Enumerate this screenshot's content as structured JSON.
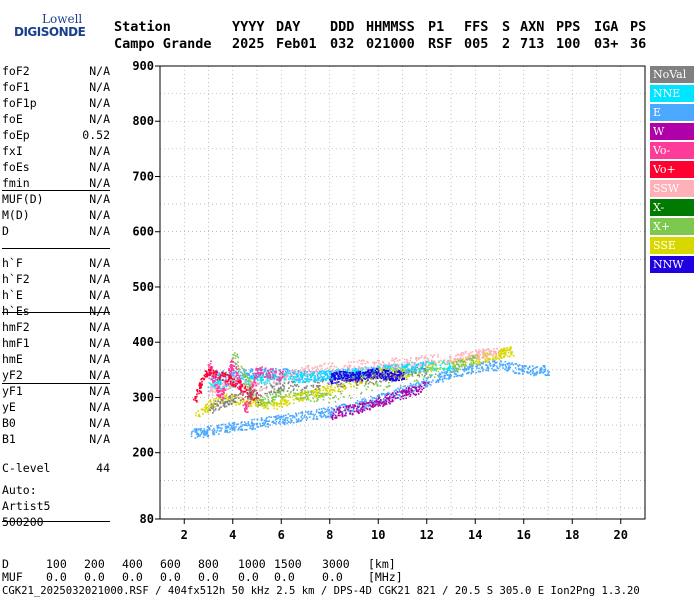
{
  "logo": {
    "line1": "Lowell",
    "line2": "DIGISONDE"
  },
  "header": {
    "labels": [
      "Station",
      "YYYY",
      "DAY",
      "DDD",
      "HHMMSS",
      "P1",
      "FFS",
      "S",
      "AXN",
      "PPS",
      "IGA",
      "PS"
    ],
    "values": [
      "Campo Grande",
      "2025",
      "Feb01",
      "032",
      "021000",
      "RSF",
      "005",
      "2",
      "713",
      "100",
      "03+",
      "36"
    ]
  },
  "params": {
    "group1": [
      {
        "label": "foF2",
        "value": "N/A"
      },
      {
        "label": "foF1",
        "value": "N/A"
      },
      {
        "label": "foF1p",
        "value": "N/A"
      },
      {
        "label": "foE",
        "value": "N/A"
      },
      {
        "label": "foEp",
        "value": "0.52"
      },
      {
        "label": "fxI",
        "value": "N/A"
      },
      {
        "label": "foEs",
        "value": "N/A"
      },
      {
        "label": "fmin",
        "value": "N/A"
      }
    ],
    "group2": [
      {
        "label": "MUF(D)",
        "value": "N/A"
      },
      {
        "label": "M(D)",
        "value": "N/A"
      },
      {
        "label": "D",
        "value": "N/A"
      }
    ],
    "group3": [
      {
        "label": "h`F",
        "value": "N/A"
      },
      {
        "label": "h`F2",
        "value": "N/A"
      },
      {
        "label": "h`E",
        "value": "N/A"
      },
      {
        "label": "h`Es",
        "value": "N/A"
      }
    ],
    "group4": [
      {
        "label": "hmF2",
        "value": "N/A"
      },
      {
        "label": "hmF1",
        "value": "N/A"
      },
      {
        "label": "hmE",
        "value": "N/A"
      },
      {
        "label": "yF2",
        "value": "N/A"
      },
      {
        "label": "yF1",
        "value": "N/A"
      },
      {
        "label": "yE",
        "value": "N/A"
      },
      {
        "label": "B0",
        "value": "N/A"
      },
      {
        "label": "B1",
        "value": "N/A"
      }
    ],
    "clevel": {
      "label": "C-level",
      "value": "44"
    }
  },
  "auto": {
    "line1": "Auto:",
    "line2": "Artist5",
    "line3": "500200"
  },
  "legend": [
    {
      "name": "NoVal",
      "color": "#808080"
    },
    {
      "name": "NNE",
      "color": "#00e5ff"
    },
    {
      "name": "E",
      "color": "#4aa8ff"
    },
    {
      "name": "W",
      "color": "#b000a8"
    },
    {
      "name": "Vo-",
      "color": "#ff3b9a"
    },
    {
      "name": "Vo+",
      "color": "#ff0030"
    },
    {
      "name": "SSW",
      "color": "#ffb0b8"
    },
    {
      "name": "X-",
      "color": "#007a00"
    },
    {
      "name": "X+",
      "color": "#7ec850"
    },
    {
      "name": "SSE",
      "color": "#d8d800"
    },
    {
      "name": "NNW",
      "color": "#2000e0"
    }
  ],
  "footer": {
    "d_label": "D",
    "d_values": [
      "100",
      "200",
      "400",
      "600",
      "800",
      "1000",
      "1500",
      "3000",
      "[km]"
    ],
    "muf_label": "MUF",
    "muf_values": [
      "0.0",
      "0.0",
      "0.0",
      "0.0",
      "0.0",
      "0.0",
      "0.0",
      "0.0",
      "[MHz]"
    ],
    "info": "CGK21_2025032021000.RSF / 404fx512h 50 kHz 2.5 km / DPS-4D CGK21 821 / 20.5 S 305.0 E Ion2Png 1.3.20"
  },
  "chart_data": {
    "type": "scatter",
    "xlim": [
      1.0,
      21.0
    ],
    "ylim": [
      80,
      900
    ],
    "x_ticks": [
      2,
      4,
      6,
      8,
      10,
      12,
      14,
      16,
      18,
      20
    ],
    "y_ticks": [
      80,
      200,
      300,
      400,
      500,
      600,
      700,
      800,
      900
    ],
    "grid": true,
    "traces": [
      {
        "name": "E",
        "color": "#4aa8ff",
        "points": [
          [
            2.3,
            235
          ],
          [
            3,
            240
          ],
          [
            4,
            248
          ],
          [
            5,
            254
          ],
          [
            6,
            261
          ],
          [
            7,
            268
          ],
          [
            8,
            275
          ],
          [
            9,
            285
          ],
          [
            10,
            298
          ],
          [
            11,
            312
          ],
          [
            12,
            330
          ],
          [
            13,
            345
          ],
          [
            14,
            355
          ],
          [
            15,
            360
          ],
          [
            16,
            350
          ],
          [
            17,
            350
          ]
        ]
      },
      {
        "name": "E",
        "color": "#4aa8ff",
        "points": [
          [
            3,
            340
          ],
          [
            4,
            342
          ],
          [
            5,
            345
          ],
          [
            6,
            345
          ],
          [
            7,
            340
          ],
          [
            8,
            342
          ],
          [
            9,
            345
          ],
          [
            10,
            350
          ],
          [
            11,
            352
          ],
          [
            12,
            355
          ]
        ]
      },
      {
        "name": "NNE",
        "color": "#00e5ff",
        "points": [
          [
            3,
            320
          ],
          [
            4,
            328
          ],
          [
            5,
            333
          ],
          [
            6,
            336
          ],
          [
            7,
            338
          ],
          [
            8,
            342
          ],
          [
            9,
            345
          ],
          [
            10,
            350
          ],
          [
            11,
            355
          ],
          [
            12,
            358
          ],
          [
            13,
            360
          ]
        ]
      },
      {
        "name": "W",
        "color": "#b000a8",
        "points": [
          [
            8,
            270
          ],
          [
            9,
            280
          ],
          [
            10,
            292
          ],
          [
            11,
            308
          ],
          [
            12,
            322
          ]
        ]
      },
      {
        "name": "SSE",
        "color": "#d8d800",
        "points": [
          [
            2.5,
            270
          ],
          [
            3.5,
            300
          ],
          [
            4.5,
            295
          ],
          [
            5.5,
            285
          ],
          [
            6.5,
            300
          ],
          [
            7.5,
            310
          ],
          [
            8.5,
            320
          ],
          [
            10,
            345
          ],
          [
            11,
            345
          ],
          [
            14,
            370
          ],
          [
            15,
            380
          ],
          [
            15.5,
            385
          ]
        ]
      },
      {
        "name": "SSW",
        "color": "#ffb0b8",
        "points": [
          [
            3,
            310
          ],
          [
            4,
            330
          ],
          [
            5,
            320
          ],
          [
            7,
            350
          ],
          [
            9,
            360
          ],
          [
            11,
            365
          ],
          [
            13,
            372
          ],
          [
            14,
            378
          ],
          [
            15,
            385
          ]
        ]
      },
      {
        "name": "NNW",
        "color": "#2000e0",
        "points": [
          [
            8,
            335
          ],
          [
            8.5,
            340
          ],
          [
            9,
            338
          ],
          [
            9.5,
            342
          ],
          [
            10,
            345
          ],
          [
            10.5,
            340
          ],
          [
            11,
            342
          ]
        ]
      },
      {
        "name": "Vo-",
        "color": "#ff3b9a",
        "points": [
          [
            3,
            360
          ],
          [
            3.5,
            300
          ],
          [
            4,
            370
          ],
          [
            4.5,
            280
          ],
          [
            5,
            350
          ],
          [
            6,
            340
          ]
        ]
      },
      {
        "name": "X+",
        "color": "#7ec850",
        "points": [
          [
            4,
            380
          ],
          [
            5,
            290
          ],
          [
            6,
            310
          ],
          [
            8,
            300
          ],
          [
            13,
            355
          ],
          [
            14,
            370
          ]
        ]
      },
      {
        "name": "Vo+",
        "color": "#ff0030",
        "points": [
          [
            2.4,
            300
          ],
          [
            3,
            350
          ],
          [
            4,
            330
          ],
          [
            5,
            300
          ]
        ]
      },
      {
        "name": "NoVal",
        "color": "#808080",
        "points": [
          [
            3,
            280
          ],
          [
            4,
            300
          ],
          [
            6,
            320
          ],
          [
            9,
            330
          ],
          [
            12,
            350
          ]
        ]
      }
    ]
  }
}
